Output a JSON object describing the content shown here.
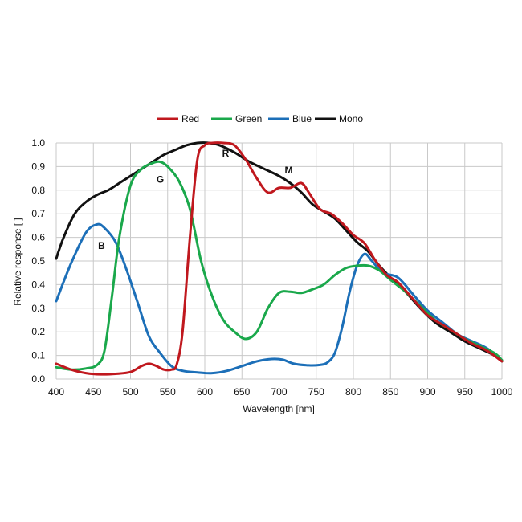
{
  "chart_data": {
    "type": "line",
    "title": "",
    "xlabel": "Wavelength [nm]",
    "ylabel": "Relative response [ ]",
    "xlim": [
      400,
      1000
    ],
    "ylim": [
      0,
      1.0
    ],
    "grid": true,
    "legend_position": "top-center",
    "x_ticks": [
      400,
      450,
      500,
      550,
      600,
      650,
      700,
      750,
      800,
      850,
      900,
      950,
      1000
    ],
    "y_ticks": [
      0.0,
      0.1,
      0.2,
      0.3,
      0.4,
      0.5,
      0.6,
      0.7,
      0.8,
      0.9,
      1.0
    ],
    "x_tick_labels": [
      "400",
      "450",
      "500",
      "550",
      "600",
      "650",
      "700",
      "750",
      "800",
      "850",
      "900",
      "950",
      "1000"
    ],
    "y_tick_labels": [
      "0.0",
      "0.1",
      "0.2",
      "0.3",
      "0.4",
      "0.5",
      "0.6",
      "0.7",
      "0.8",
      "0.9",
      "1.0"
    ],
    "series": [
      {
        "name": "Red",
        "color": "#c0181e",
        "points": [
          [
            400,
            0.065
          ],
          [
            420,
            0.04
          ],
          [
            440,
            0.025
          ],
          [
            460,
            0.02
          ],
          [
            480,
            0.022
          ],
          [
            500,
            0.03
          ],
          [
            515,
            0.055
          ],
          [
            525,
            0.065
          ],
          [
            535,
            0.055
          ],
          [
            545,
            0.04
          ],
          [
            555,
            0.04
          ],
          [
            562,
            0.06
          ],
          [
            570,
            0.2
          ],
          [
            580,
            0.6
          ],
          [
            590,
            0.93
          ],
          [
            600,
            0.99
          ],
          [
            610,
            1.0
          ],
          [
            625,
            1.0
          ],
          [
            640,
            0.99
          ],
          [
            655,
            0.93
          ],
          [
            670,
            0.85
          ],
          [
            685,
            0.79
          ],
          [
            700,
            0.81
          ],
          [
            715,
            0.81
          ],
          [
            730,
            0.83
          ],
          [
            740,
            0.79
          ],
          [
            755,
            0.72
          ],
          [
            770,
            0.7
          ],
          [
            785,
            0.66
          ],
          [
            800,
            0.61
          ],
          [
            815,
            0.575
          ],
          [
            830,
            0.5
          ],
          [
            845,
            0.44
          ],
          [
            860,
            0.41
          ],
          [
            880,
            0.34
          ],
          [
            900,
            0.27
          ],
          [
            920,
            0.23
          ],
          [
            940,
            0.19
          ],
          [
            960,
            0.15
          ],
          [
            980,
            0.12
          ],
          [
            1000,
            0.075
          ]
        ]
      },
      {
        "name": "Green",
        "color": "#1aa84b",
        "points": [
          [
            400,
            0.05
          ],
          [
            420,
            0.04
          ],
          [
            440,
            0.045
          ],
          [
            455,
            0.06
          ],
          [
            465,
            0.12
          ],
          [
            475,
            0.35
          ],
          [
            485,
            0.6
          ],
          [
            500,
            0.82
          ],
          [
            515,
            0.89
          ],
          [
            530,
            0.915
          ],
          [
            540,
            0.92
          ],
          [
            550,
            0.9
          ],
          [
            565,
            0.84
          ],
          [
            580,
            0.72
          ],
          [
            595,
            0.5
          ],
          [
            610,
            0.35
          ],
          [
            625,
            0.25
          ],
          [
            640,
            0.2
          ],
          [
            655,
            0.17
          ],
          [
            670,
            0.2
          ],
          [
            685,
            0.3
          ],
          [
            700,
            0.365
          ],
          [
            715,
            0.37
          ],
          [
            730,
            0.365
          ],
          [
            745,
            0.38
          ],
          [
            760,
            0.4
          ],
          [
            775,
            0.44
          ],
          [
            790,
            0.47
          ],
          [
            805,
            0.48
          ],
          [
            820,
            0.48
          ],
          [
            835,
            0.46
          ],
          [
            850,
            0.42
          ],
          [
            870,
            0.37
          ],
          [
            890,
            0.31
          ],
          [
            910,
            0.25
          ],
          [
            930,
            0.21
          ],
          [
            950,
            0.17
          ],
          [
            970,
            0.14
          ],
          [
            990,
            0.11
          ],
          [
            1000,
            0.08
          ]
        ]
      },
      {
        "name": "Blue",
        "color": "#1c6fb8",
        "points": [
          [
            400,
            0.33
          ],
          [
            420,
            0.49
          ],
          [
            440,
            0.62
          ],
          [
            455,
            0.655
          ],
          [
            465,
            0.64
          ],
          [
            480,
            0.58
          ],
          [
            495,
            0.46
          ],
          [
            510,
            0.32
          ],
          [
            525,
            0.18
          ],
          [
            540,
            0.11
          ],
          [
            555,
            0.055
          ],
          [
            570,
            0.035
          ],
          [
            590,
            0.028
          ],
          [
            610,
            0.025
          ],
          [
            630,
            0.035
          ],
          [
            650,
            0.055
          ],
          [
            670,
            0.075
          ],
          [
            690,
            0.085
          ],
          [
            705,
            0.082
          ],
          [
            720,
            0.065
          ],
          [
            740,
            0.058
          ],
          [
            755,
            0.06
          ],
          [
            765,
            0.07
          ],
          [
            775,
            0.11
          ],
          [
            785,
            0.22
          ],
          [
            795,
            0.37
          ],
          [
            805,
            0.48
          ],
          [
            815,
            0.53
          ],
          [
            825,
            0.5
          ],
          [
            840,
            0.45
          ],
          [
            860,
            0.43
          ],
          [
            880,
            0.36
          ],
          [
            900,
            0.29
          ],
          [
            920,
            0.24
          ],
          [
            940,
            0.19
          ],
          [
            960,
            0.16
          ],
          [
            980,
            0.13
          ],
          [
            1000,
            0.08
          ]
        ]
      },
      {
        "name": "Mono",
        "color": "#111111",
        "points": [
          [
            400,
            0.51
          ],
          [
            410,
            0.6
          ],
          [
            425,
            0.7
          ],
          [
            440,
            0.75
          ],
          [
            455,
            0.78
          ],
          [
            470,
            0.8
          ],
          [
            485,
            0.83
          ],
          [
            500,
            0.86
          ],
          [
            515,
            0.89
          ],
          [
            530,
            0.92
          ],
          [
            545,
            0.95
          ],
          [
            560,
            0.97
          ],
          [
            575,
            0.99
          ],
          [
            590,
            1.0
          ],
          [
            605,
            1.0
          ],
          [
            620,
            0.99
          ],
          [
            640,
            0.96
          ],
          [
            660,
            0.92
          ],
          [
            680,
            0.89
          ],
          [
            700,
            0.86
          ],
          [
            715,
            0.83
          ],
          [
            730,
            0.79
          ],
          [
            745,
            0.74
          ],
          [
            760,
            0.71
          ],
          [
            775,
            0.68
          ],
          [
            790,
            0.63
          ],
          [
            805,
            0.58
          ],
          [
            820,
            0.54
          ],
          [
            835,
            0.48
          ],
          [
            850,
            0.43
          ],
          [
            870,
            0.37
          ],
          [
            890,
            0.3
          ],
          [
            910,
            0.24
          ],
          [
            930,
            0.2
          ],
          [
            950,
            0.16
          ],
          [
            970,
            0.13
          ],
          [
            990,
            0.1
          ],
          [
            1000,
            0.075
          ]
        ]
      }
    ],
    "annotations": [
      {
        "text": "R",
        "x": 628,
        "y": 0.955
      },
      {
        "text": "G",
        "x": 540,
        "y": 0.845
      },
      {
        "text": "B",
        "x": 461,
        "y": 0.565
      },
      {
        "text": "M",
        "x": 713,
        "y": 0.885
      }
    ]
  }
}
